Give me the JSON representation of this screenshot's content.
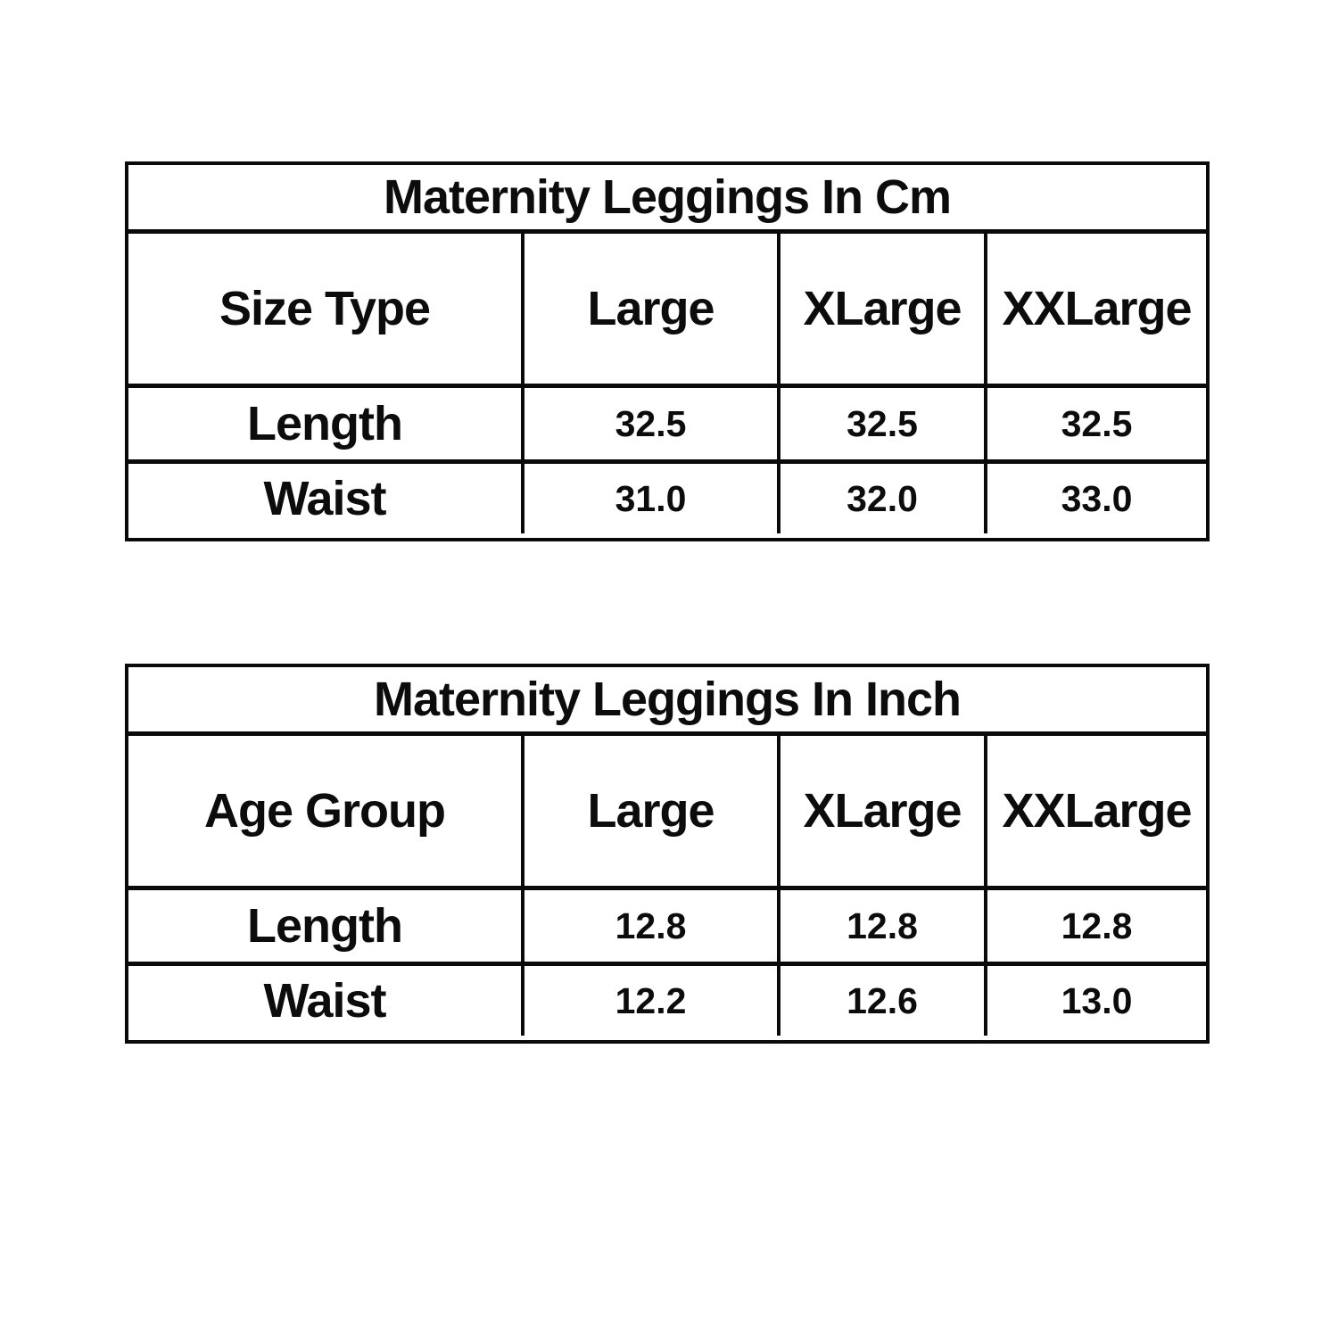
{
  "colors": {
    "background": "#ffffff",
    "border": "#0a0a0a",
    "text": "#0c0c0c"
  },
  "tables": [
    {
      "id": "cm",
      "title": "Maternity Leggings In Cm",
      "columns": [
        "Size Type",
        "Large",
        "XLarge",
        "XXLarge"
      ],
      "rows": [
        {
          "label": "Length",
          "values": [
            "32.5",
            "32.5",
            "32.5"
          ]
        },
        {
          "label": "Waist",
          "values": [
            "31.0",
            "32.0",
            "33.0"
          ]
        }
      ]
    },
    {
      "id": "inch",
      "title": "Maternity Leggings In Inch",
      "columns": [
        "Age Group",
        "Large",
        "XLarge",
        "XXLarge"
      ],
      "rows": [
        {
          "label": "Length",
          "values": [
            "12.8",
            "12.8",
            "12.8"
          ]
        },
        {
          "label": "Waist",
          "values": [
            "12.2",
            "12.6",
            "13.0"
          ]
        }
      ]
    }
  ]
}
